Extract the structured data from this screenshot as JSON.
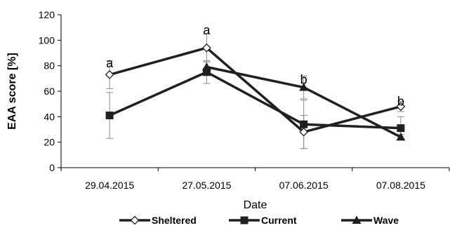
{
  "chart_data": {
    "type": "line",
    "xlabel": "Date",
    "ylabel": "EAA score [%]",
    "categories": [
      "29.04.2015",
      "27.05.2015",
      "07.06.2015",
      "07.08.2015"
    ],
    "ylim": [
      0,
      120
    ],
    "yticks": [
      0,
      20,
      40,
      60,
      80,
      100,
      120
    ],
    "grid": false,
    "legend_position": "bottom",
    "series": [
      {
        "name": "Sheltered",
        "marker": "diamond-open",
        "values": [
          73,
          94,
          28,
          48
        ],
        "errors": [
          11,
          11,
          13,
          4
        ]
      },
      {
        "name": "Current",
        "marker": "square-filled",
        "values": [
          41,
          75,
          34,
          31
        ],
        "errors": [
          18,
          9,
          19,
          9
        ]
      },
      {
        "name": "Wave",
        "marker": "triangle-filled",
        "values": [
          null,
          79,
          63,
          24
        ],
        "errors": [
          null,
          4,
          9,
          2
        ]
      }
    ],
    "annotations": [
      "a",
      "a",
      "b",
      "b"
    ],
    "annotation_y": [
      82,
      108,
      69,
      52
    ],
    "colors": {
      "line": "#231f20",
      "error_bar": "#8c8c8c",
      "axis": "#000000"
    }
  }
}
